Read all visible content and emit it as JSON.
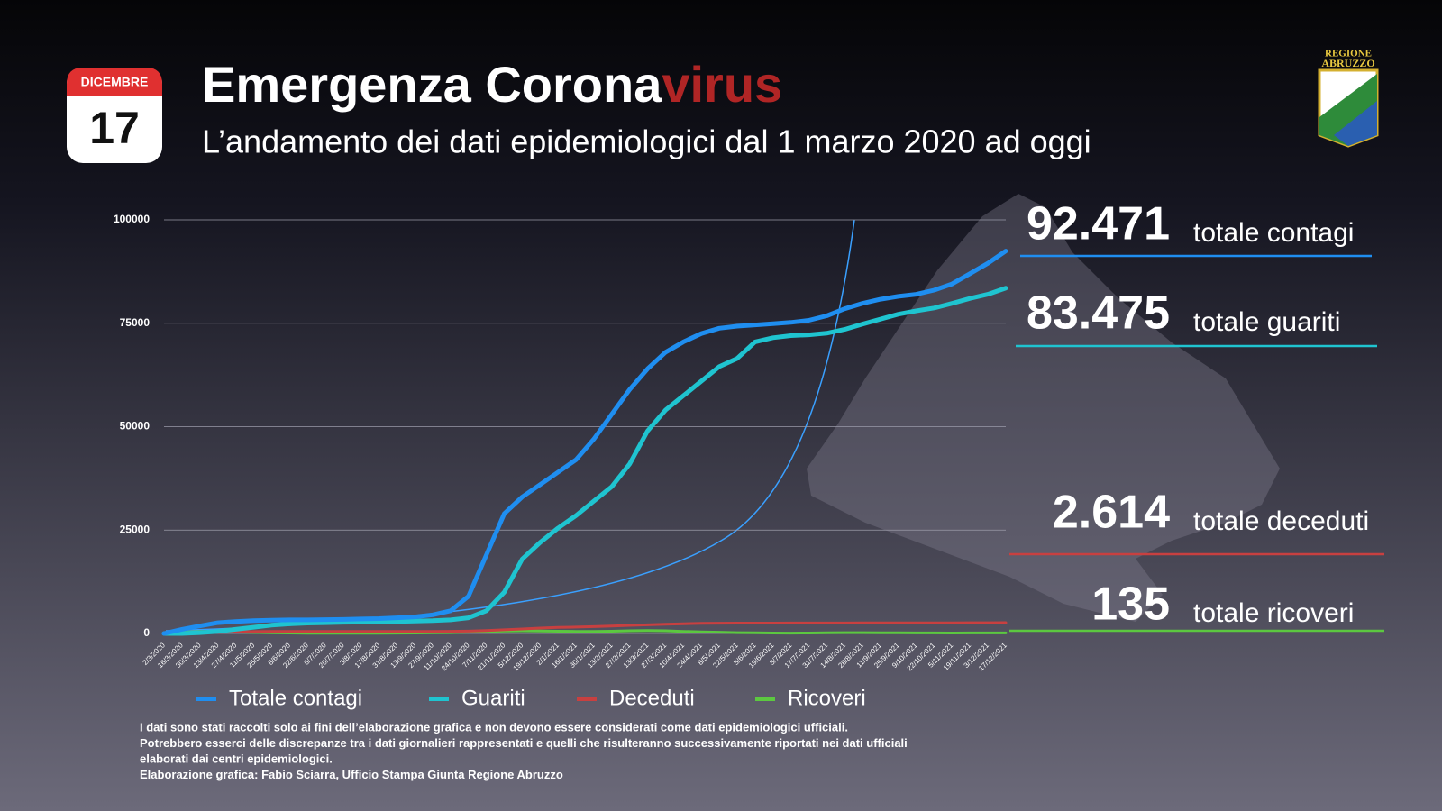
{
  "header": {
    "month": "DICEMBRE",
    "day": "17",
    "title_main": "Emergenza Corona",
    "title_accent": "virus",
    "subtitle": "L’andamento dei dati epidemiologici dal 1 marzo 2020 ad oggi",
    "logo_top": "REGIONE",
    "logo_bottom": "ABRUZZO"
  },
  "chart_data": {
    "type": "line",
    "categories": [
      "2/3/2020",
      "16/3/2020",
      "30/3/2020",
      "13/4/2020",
      "27/4/2020",
      "11/5/2020",
      "25/5/2020",
      "8/6/2020",
      "22/6/2020",
      "6/7/2020",
      "20/7/2020",
      "3/8/2020",
      "17/8/2020",
      "31/8/2020",
      "13/9/2020",
      "27/9/2020",
      "11/10/2020",
      "24/10/2020",
      "7/11/2020",
      "21/11/2020",
      "5/12/2020",
      "19/12/2020",
      "2/1/2021",
      "16/1/2021",
      "30/1/2021",
      "13/2/2021",
      "27/2/2021",
      "13/3/2021",
      "27/3/2021",
      "10/4/2021",
      "24/4/2021",
      "8/5/2021",
      "22/5/2021",
      "5/6/2021",
      "19/6/2021",
      "3/7/2021",
      "17/7/2021",
      "31/7/2021",
      "14/8/2021",
      "28/8/2021",
      "11/9/2021",
      "25/9/2021",
      "9/10/2021",
      "22/10/2021",
      "5/11/2021",
      "19/11/2021",
      "3/12/2021",
      "17/12/2021"
    ],
    "series": [
      {
        "name": "Totale contagi",
        "color": "#1f8ef0",
        "values": [
          0,
          1000,
          1800,
          2600,
          2900,
          3100,
          3200,
          3300,
          3300,
          3350,
          3400,
          3500,
          3600,
          3800,
          4000,
          4500,
          5500,
          9000,
          19000,
          29000,
          33000,
          36000,
          39000,
          42000,
          47000,
          53000,
          59000,
          64000,
          68000,
          70500,
          72500,
          73800,
          74300,
          74600,
          74900,
          75200,
          75700,
          76800,
          78500,
          79800,
          80800,
          81500,
          82000,
          83000,
          84500,
          87000,
          89500,
          92471
        ]
      },
      {
        "name": "Guariti",
        "color": "#1fc4d0",
        "values": [
          0,
          0,
          200,
          500,
          1000,
          1500,
          2000,
          2300,
          2500,
          2600,
          2700,
          2750,
          2800,
          2900,
          3000,
          3100,
          3300,
          3800,
          5500,
          10000,
          18000,
          22000,
          25500,
          28500,
          32000,
          35500,
          41000,
          49000,
          54000,
          57500,
          61000,
          64500,
          66500,
          70500,
          71500,
          72000,
          72200,
          72600,
          73500,
          74800,
          76000,
          77200,
          78000,
          78700,
          79800,
          81000,
          82000,
          83475
        ]
      },
      {
        "name": "Deceduti",
        "color": "#c84040",
        "values": [
          0,
          50,
          200,
          350,
          400,
          450,
          470,
          470,
          480,
          480,
          480,
          480,
          480,
          490,
          490,
          500,
          520,
          560,
          700,
          900,
          1100,
          1300,
          1450,
          1550,
          1650,
          1800,
          1950,
          2100,
          2250,
          2350,
          2450,
          2480,
          2500,
          2510,
          2515,
          2520,
          2520,
          2525,
          2530,
          2540,
          2550,
          2560,
          2565,
          2570,
          2580,
          2590,
          2600,
          2614
        ]
      },
      {
        "name": "Ricoveri",
        "color": "#5cc840",
        "values": [
          0,
          300,
          500,
          450,
          350,
          250,
          150,
          100,
          60,
          40,
          40,
          50,
          60,
          80,
          100,
          150,
          200,
          300,
          500,
          600,
          650,
          600,
          550,
          500,
          500,
          550,
          650,
          700,
          650,
          500,
          400,
          300,
          200,
          150,
          100,
          80,
          100,
          150,
          200,
          200,
          180,
          150,
          130,
          120,
          110,
          120,
          130,
          135
        ]
      }
    ],
    "ylim": [
      0,
      100000
    ],
    "yticks": [
      0,
      25000,
      50000,
      75000,
      100000
    ],
    "grid": true
  },
  "totals": [
    {
      "value": "92.471",
      "label": "totale contagi"
    },
    {
      "value": "83.475",
      "label": "totale guariti"
    },
    {
      "value": "2.614",
      "label": "totale deceduti"
    },
    {
      "value": "135",
      "label": "totale ricoveri"
    }
  ],
  "footnote": [
    "I dati sono stati raccolti solo ai fini dell’elaborazione grafica e non devono essere considerati come dati epidemiologici ufficiali.",
    "Potrebbero esserci delle discrepanze tra i dati giornalieri rappresentati e quelli che risulteranno successivamente riportati nei dati ufficiali",
    "elaborati dai centri epidemiologici.",
    "Elaborazione grafica: Fabio Sciarra, Ufficio Stampa Giunta Regione Abruzzo"
  ]
}
